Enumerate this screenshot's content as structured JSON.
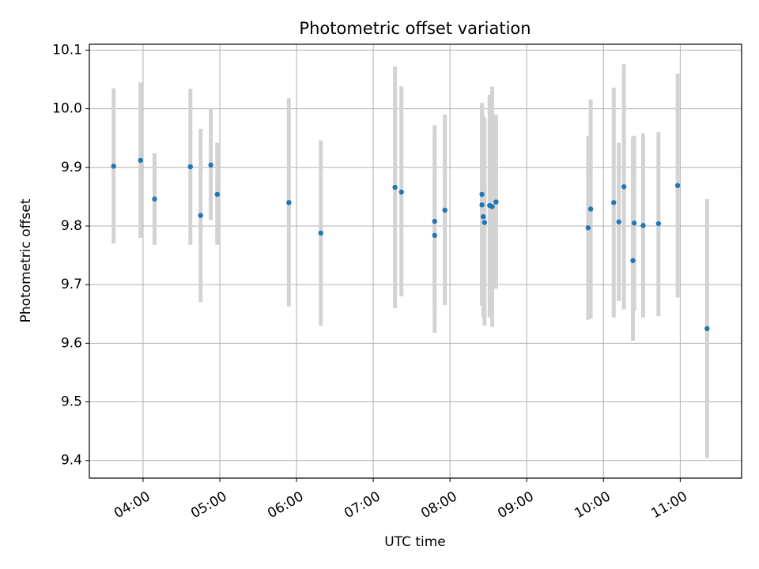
{
  "chart_data": {
    "type": "scatter",
    "title": "Photometric offset variation",
    "xlabel": "UTC time",
    "ylabel": "Photometric offset",
    "xlim": [
      "03:18",
      "11:48"
    ],
    "ylim": [
      9.37,
      10.11
    ],
    "grid": true,
    "x_ticks": [
      "04:00",
      "05:00",
      "06:00",
      "07:00",
      "08:00",
      "09:00",
      "10:00",
      "11:00"
    ],
    "y_ticks": [
      9.4,
      9.5,
      9.6,
      9.7,
      9.8,
      9.9,
      10.0,
      10.1
    ],
    "y_tick_labels": [
      "9.4",
      "9.5",
      "9.6",
      "9.7",
      "9.8",
      "9.9",
      "10.0",
      "10.1"
    ],
    "colors": {
      "point": "#1f77b4",
      "errorbar": "#d3d3d3",
      "grid": "#b0b0b0"
    },
    "points": [
      {
        "x": "03:37",
        "y": 9.902,
        "low": 9.77,
        "high": 10.035
      },
      {
        "x": "03:58",
        "y": 9.912,
        "low": 9.78,
        "high": 10.045
      },
      {
        "x": "04:09",
        "y": 9.846,
        "low": 9.768,
        "high": 9.924
      },
      {
        "x": "04:37",
        "y": 9.901,
        "low": 9.768,
        "high": 10.034
      },
      {
        "x": "04:45",
        "y": 9.818,
        "low": 9.67,
        "high": 9.966
      },
      {
        "x": "04:53",
        "y": 9.904,
        "low": 9.81,
        "high": 10.0
      },
      {
        "x": "04:58",
        "y": 9.854,
        "low": 9.768,
        "high": 9.942
      },
      {
        "x": "05:54",
        "y": 9.84,
        "low": 9.663,
        "high": 10.018
      },
      {
        "x": "06:19",
        "y": 9.788,
        "low": 9.63,
        "high": 9.946
      },
      {
        "x": "07:17",
        "y": 9.866,
        "low": 9.66,
        "high": 10.072
      },
      {
        "x": "07:22",
        "y": 9.858,
        "low": 9.68,
        "high": 10.038
      },
      {
        "x": "07:48",
        "y": 9.808,
        "low": 9.662,
        "high": 9.954
      },
      {
        "x": "07:48",
        "y": 9.784,
        "low": 9.618,
        "high": 9.972
      },
      {
        "x": "07:56",
        "y": 9.827,
        "low": 9.665,
        "high": 9.99
      },
      {
        "x": "08:25",
        "y": 9.854,
        "low": 9.664,
        "high": 10.01
      },
      {
        "x": "08:25",
        "y": 9.836,
        "low": 9.665,
        "high": 10.006
      },
      {
        "x": "08:26",
        "y": 9.816,
        "low": 9.645,
        "high": 9.988
      },
      {
        "x": "08:27",
        "y": 9.806,
        "low": 9.63,
        "high": 9.983
      },
      {
        "x": "08:31",
        "y": 9.835,
        "low": 9.644,
        "high": 10.024
      },
      {
        "x": "08:33",
        "y": 9.833,
        "low": 9.628,
        "high": 10.038
      },
      {
        "x": "08:36",
        "y": 9.841,
        "low": 9.693,
        "high": 9.99
      },
      {
        "x": "09:48",
        "y": 9.797,
        "low": 9.64,
        "high": 9.954
      },
      {
        "x": "09:50",
        "y": 9.829,
        "low": 9.642,
        "high": 10.016
      },
      {
        "x": "10:08",
        "y": 9.84,
        "low": 9.644,
        "high": 10.036
      },
      {
        "x": "10:12",
        "y": 9.807,
        "low": 9.672,
        "high": 9.942
      },
      {
        "x": "10:16",
        "y": 9.867,
        "low": 9.658,
        "high": 10.076
      },
      {
        "x": "10:23",
        "y": 9.741,
        "low": 9.604,
        "high": 9.952
      },
      {
        "x": "10:24",
        "y": 9.805,
        "low": 9.656,
        "high": 9.954
      },
      {
        "x": "10:31",
        "y": 9.801,
        "low": 9.644,
        "high": 9.958
      },
      {
        "x": "10:43",
        "y": 9.804,
        "low": 9.646,
        "high": 9.96
      },
      {
        "x": "10:58",
        "y": 9.869,
        "low": 9.678,
        "high": 10.06
      },
      {
        "x": "11:21",
        "y": 9.625,
        "low": 9.404,
        "high": 9.846
      }
    ]
  }
}
